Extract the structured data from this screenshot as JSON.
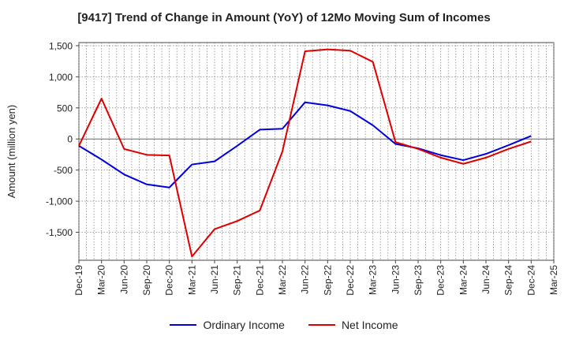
{
  "chart_data": {
    "type": "line",
    "title": "[9417]  Trend of Change in Amount (YoY) of 12Mo Moving Sum of Incomes",
    "ylabel": "Amount (million yen)",
    "xlabel": "",
    "ylim": [
      -1950,
      1550
    ],
    "yticks": [
      1500,
      1000,
      500,
      0,
      -500,
      -1000,
      -1500
    ],
    "ytick_labels": [
      "1,500",
      "1,000",
      "500",
      "0",
      "-500",
      "-1,000",
      "-1,500"
    ],
    "x_ticks": [
      "Dec-19",
      "Mar-20",
      "Jun-20",
      "Sep-20",
      "Dec-20",
      "Mar-21",
      "Jun-21",
      "Sep-21",
      "Dec-21",
      "Mar-22",
      "Jun-22",
      "Sep-22",
      "Dec-22",
      "Mar-23",
      "Jun-23",
      "Sep-23",
      "Dec-23",
      "Mar-24",
      "Jun-24",
      "Sep-24",
      "Dec-24",
      "Mar-25"
    ],
    "grid": true,
    "legend_position": "bottom",
    "series": [
      {
        "name": "Ordinary Income",
        "color": "#0000dd",
        "values": [
          -110,
          -330,
          -570,
          -730,
          -780,
          -410,
          -360,
          -110,
          150,
          165,
          590,
          540,
          450,
          220,
          -80,
          -150,
          -260,
          -340,
          -240,
          -100,
          50
        ]
      },
      {
        "name": "Net Income",
        "color": "#dd0000",
        "values": [
          -110,
          650,
          -160,
          -255,
          -265,
          -1890,
          -1450,
          -1320,
          -1150,
          -200,
          1410,
          1440,
          1420,
          1240,
          -50,
          -160,
          -300,
          -400,
          -300,
          -160,
          -40
        ]
      }
    ]
  }
}
